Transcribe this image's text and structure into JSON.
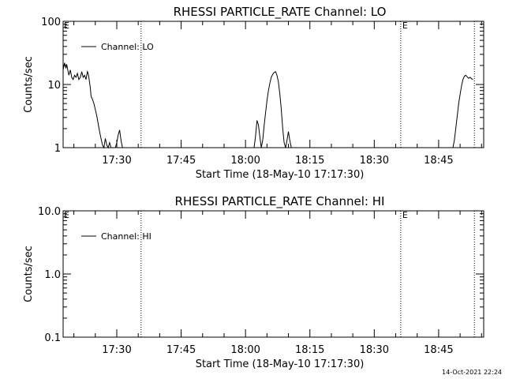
{
  "footer": {
    "timestamp": "14-Oct-2021 22:24"
  },
  "chart_data": [
    {
      "type": "line",
      "title": "RHESSI PARTICLE_RATE Channel: LO",
      "xlabel": "Start Time (18-May-10 17:17:30)",
      "ylabel": "Counts/sec",
      "yscale": "log",
      "ylim": [
        1,
        100
      ],
      "xlim": [
        "17:17:30",
        "18:55:30"
      ],
      "xticks": [
        "17:30",
        "17:45",
        "18:00",
        "18:15",
        "18:30",
        "18:45"
      ],
      "yticks": [
        "1",
        "10",
        "100"
      ],
      "legend": {
        "label": "Channel: LO",
        "placement": "top-left"
      },
      "event_markers": [
        {
          "time": "17:35:40",
          "label": "E"
        },
        {
          "time": "18:36:10",
          "label": "E"
        },
        {
          "time": "18:53:20",
          "label": ""
        }
      ],
      "series": [
        {
          "name": "Channel: LO",
          "segments": [
            {
              "x": [
                "17:17:30",
                "17:17:50",
                "17:18:10",
                "17:18:20",
                "17:18:40",
                "17:18:50",
                "17:19:10",
                "17:19:30",
                "17:19:50",
                "17:20:10",
                "17:20:30",
                "17:20:50",
                "17:21:10",
                "17:21:30",
                "17:21:50",
                "17:22:10",
                "17:22:30",
                "17:22:50",
                "17:23:10",
                "17:23:20",
                "17:23:30",
                "17:23:50",
                "17:24:00",
                "17:24:20",
                "17:24:40",
                "17:25:00",
                "17:25:20",
                "17:25:40",
                "17:26:00",
                "17:26:20",
                "17:26:40",
                "17:27:00",
                "17:27:20",
                "17:27:40",
                "17:28:00",
                "17:28:20",
                "17:28:40"
              ],
              "y": [
                17,
                22,
                18,
                21,
                16,
                14,
                17,
                13,
                12,
                14,
                13,
                15,
                12,
                13,
                16,
                13,
                14,
                12,
                16,
                15,
                13,
                9,
                6.5,
                5.8,
                5,
                4,
                3.2,
                2.4,
                1.8,
                1.4,
                1.1,
                1,
                1.4,
                1.1,
                1,
                1.2,
                1
              ]
            },
            {
              "x": [
                "17:29:40",
                "17:30:00",
                "17:30:20",
                "17:30:40",
                "17:31:00",
                "17:31:20"
              ],
              "y": [
                1,
                1.2,
                1.6,
                1.9,
                1.3,
                1
              ]
            },
            {
              "x": [
                "18:02:00",
                "18:02:20",
                "18:02:40",
                "18:03:00",
                "18:03:20",
                "18:03:40",
                "18:04:00",
                "18:04:20",
                "18:04:40",
                "18:05:00",
                "18:05:20",
                "18:05:40",
                "18:06:00",
                "18:06:20",
                "18:06:40",
                "18:07:00",
                "18:07:20",
                "18:07:40",
                "18:08:00",
                "18:08:20",
                "18:08:40",
                "18:09:00",
                "18:09:20",
                "18:09:40",
                "18:10:00",
                "18:10:20",
                "18:10:40"
              ],
              "y": [
                1,
                1.5,
                2.7,
                2.3,
                1.5,
                1,
                1.3,
                2.2,
                3.5,
                5.5,
                8,
                10.5,
                13,
                14.5,
                15.5,
                16,
                14,
                11,
                7,
                4,
                2,
                1.2,
                1,
                1.3,
                1.8,
                1.3,
                1
              ]
            },
            {
              "x": [
                "18:48:20",
                "18:48:40",
                "18:49:00",
                "18:49:20",
                "18:49:40",
                "18:50:00",
                "18:50:20",
                "18:50:40",
                "18:51:00",
                "18:51:20",
                "18:51:40",
                "18:52:00",
                "18:52:20",
                "18:52:40",
                "18:53:00"
              ],
              "y": [
                1,
                1.3,
                2,
                3.2,
                5,
                7,
                9.5,
                12,
                13.5,
                14,
                13.2,
                12.5,
                13,
                12.3,
                12
              ]
            }
          ]
        }
      ]
    },
    {
      "type": "line",
      "title": "RHESSI PARTICLE_RATE Channel: HI",
      "xlabel": "Start Time (18-May-10 17:17:30)",
      "ylabel": "Counts/sec",
      "yscale": "log",
      "ylim": [
        0.1,
        10
      ],
      "xlim": [
        "17:17:30",
        "18:55:30"
      ],
      "xticks": [
        "17:30",
        "17:45",
        "18:00",
        "18:15",
        "18:30",
        "18:45"
      ],
      "yticks": [
        "0.1",
        "1.0",
        "10.0"
      ],
      "legend": {
        "label": "Channel: HI",
        "placement": "top-left"
      },
      "event_markers": [
        {
          "time": "17:35:40",
          "label": "E"
        },
        {
          "time": "18:36:10",
          "label": "E"
        },
        {
          "time": "18:53:20",
          "label": ""
        }
      ],
      "series": [
        {
          "name": "Channel: HI",
          "segments": []
        }
      ]
    }
  ]
}
